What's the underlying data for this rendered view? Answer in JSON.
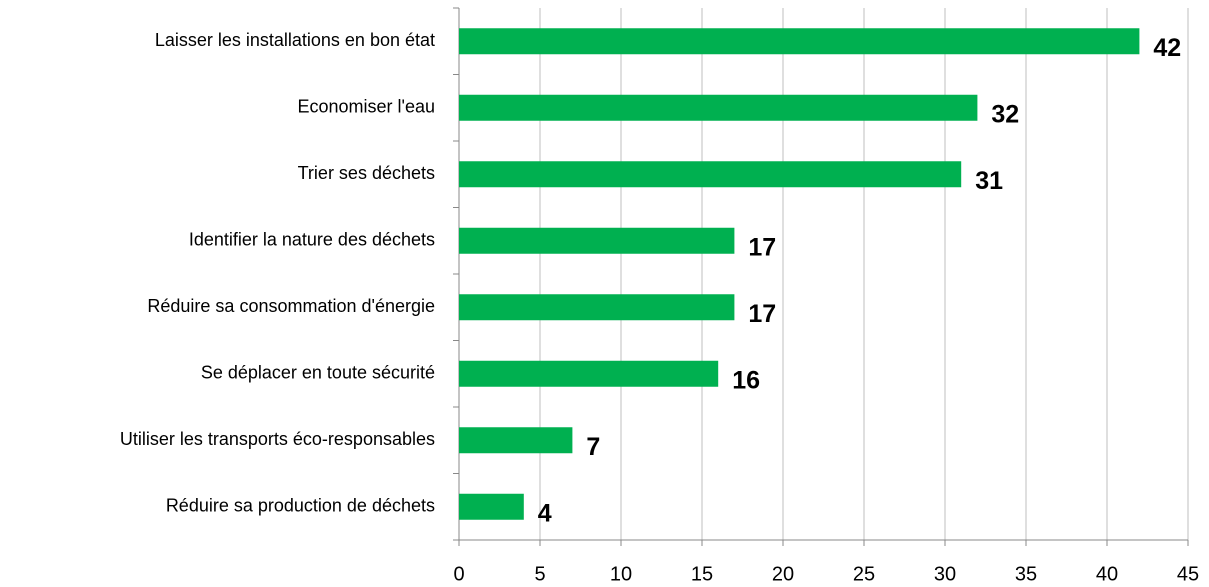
{
  "chart_data": {
    "type": "bar",
    "orientation": "horizontal",
    "categories": [
      "Laisser les installations en bon état",
      "Economiser l'eau",
      "Trier ses déchets",
      "Identifier la nature des déchets",
      "Réduire sa consommation d'énergie",
      "Se déplacer en toute sécurité",
      "Utiliser les transports éco-responsables",
      "Réduire sa production de déchets"
    ],
    "values": [
      42,
      32,
      31,
      17,
      17,
      16,
      7,
      4
    ],
    "color": "#00b050",
    "xlim": [
      0,
      45
    ],
    "xticks": [
      0,
      5,
      10,
      15,
      20,
      25,
      30,
      35,
      40,
      45
    ],
    "grid": true
  }
}
